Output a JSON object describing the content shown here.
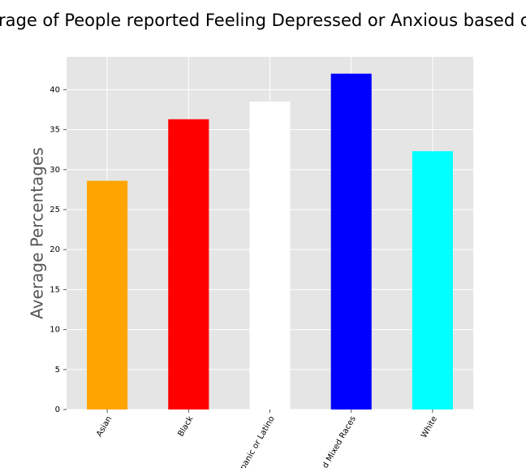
{
  "chart_data": {
    "type": "bar",
    "title": "rage of People reported Feeling Depressed or Anxious based on R",
    "y_label": "Average Percentages",
    "categories": [
      "Asian",
      "Black",
      "panic or Latino",
      "d Mixed Races",
      "White"
    ],
    "values": [
      28.6,
      36.3,
      38.5,
      42.0,
      32.3
    ],
    "colors": [
      "#ffa500",
      "#ff0000",
      "#ffffff",
      "#0000ff",
      "#00ffff"
    ],
    "ylim": [
      0,
      44.1
    ],
    "yticks": [
      0,
      5,
      10,
      15,
      20,
      25,
      30,
      35,
      40
    ],
    "grid": true
  }
}
